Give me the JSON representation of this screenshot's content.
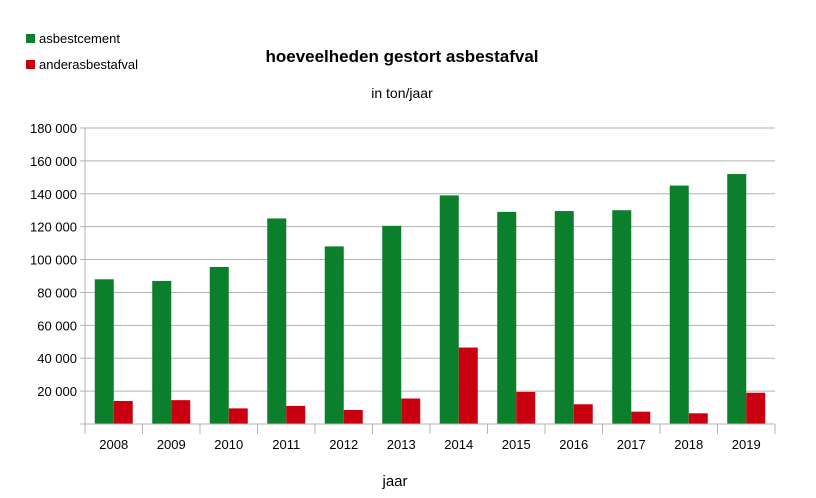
{
  "chart_data": {
    "type": "bar",
    "title": "hoeveelheden gestort asbestafval",
    "subtitle": "in ton/jaar",
    "xlabel": "jaar",
    "ylabel": "",
    "ylim": [
      0,
      180000
    ],
    "yticks": [
      0,
      20000,
      40000,
      60000,
      80000,
      100000,
      120000,
      140000,
      160000,
      180000
    ],
    "ytick_labels": [
      "",
      "20 000",
      "40 000",
      "60 000",
      "80 000",
      "100 000",
      "120 000",
      "140 000",
      "160 000",
      "180 000"
    ],
    "grid": true,
    "legend_position": "top-left",
    "categories": [
      "2008",
      "2009",
      "2010",
      "2011",
      "2012",
      "2013",
      "2014",
      "2015",
      "2016",
      "2017",
      "2018",
      "2019"
    ],
    "series": [
      {
        "name": "asbestcement",
        "color": "#0b7f2b",
        "values": [
          88000,
          87000,
          95500,
          125000,
          108000,
          120500,
          139000,
          129000,
          129500,
          130000,
          145000,
          152000
        ]
      },
      {
        "name": "anderasbestafval",
        "color": "#c80010",
        "values": [
          14000,
          14500,
          9500,
          11000,
          8500,
          15500,
          46500,
          19500,
          12000,
          7500,
          6500,
          19000
        ]
      }
    ]
  }
}
